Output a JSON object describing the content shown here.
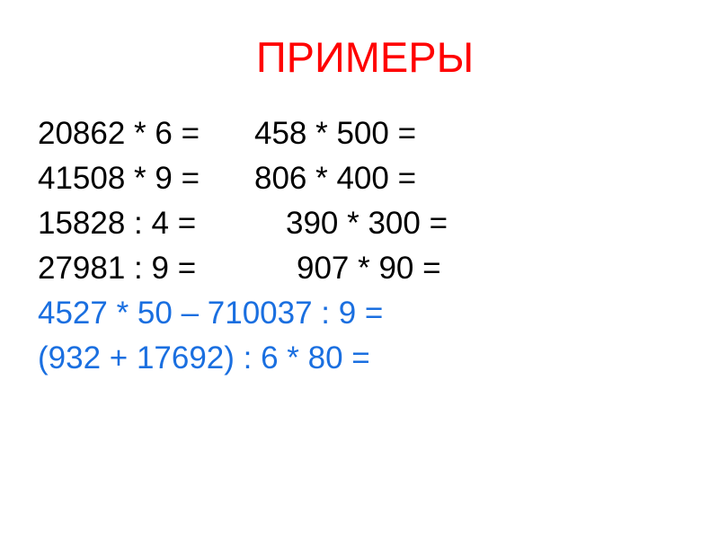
{
  "title": "ПРИМЕРЫ",
  "colors": {
    "title": "#ff0000",
    "text": "#000000",
    "highlight": "#1a6fe0"
  },
  "left_column": [
    "20862 * 6 =",
    "41508 * 9 =",
    "15828 : 4 =",
    "27981 : 9 ="
  ],
  "right_column": [
    "458 * 500 =",
    "806 * 400 =",
    "390 * 300 =",
    "907 * 90 ="
  ],
  "expressions": [
    "4527 * 50 – 710037 : 9 =",
    "(932 + 17692) : 6 * 80 ="
  ]
}
